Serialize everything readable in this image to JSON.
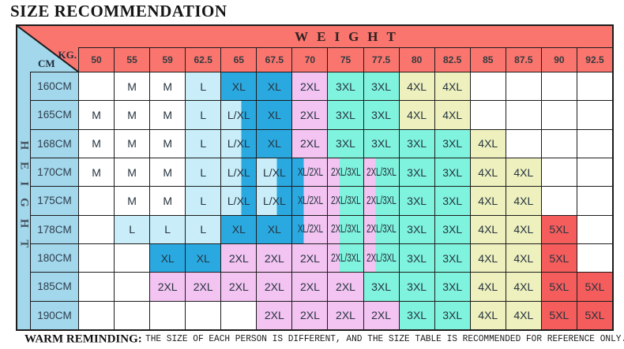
{
  "title": "SIZE RECOMMENDATION",
  "note": {
    "label": "WARM REMINDING:",
    "text": "THE SIZE OF EACH PERSON IS DIFFERENT, AND THE SIZE TABLE IS RECOMMENDED FOR REFERENCE ONLY."
  },
  "table": {
    "weight_label": "WEIGHT",
    "height_label": "HEIGHT",
    "corner": {
      "kg": "KG.",
      "cm": "CM"
    },
    "weights": [
      "50",
      "55",
      "59",
      "62.5",
      "65",
      "67.5",
      "70",
      "75",
      "77.5",
      "80",
      "82.5",
      "85",
      "87.5",
      "90",
      "92.5"
    ],
    "rows": [
      {
        "height": "160CM",
        "cells": [
          "",
          "M",
          "M",
          "L",
          "XL",
          "XL",
          "2XL",
          "3XL",
          "3XL",
          "4XL",
          "4XL",
          "",
          "",
          "",
          ""
        ]
      },
      {
        "height": "165CM",
        "cells": [
          "M",
          "M",
          "M",
          "L",
          "L/XL",
          "XL",
          "2XL",
          "3XL",
          "3XL",
          "4XL",
          "4XL",
          "",
          "",
          "",
          ""
        ]
      },
      {
        "height": "168CM",
        "cells": [
          "M",
          "M",
          "M",
          "L",
          "L/XL",
          "XL",
          "2XL",
          "3XL",
          "3XL",
          "3XL",
          "3XL",
          "4XL",
          "",
          "",
          ""
        ]
      },
      {
        "height": "170CM",
        "cells": [
          "M",
          "M",
          "M",
          "L",
          "L/XL",
          "L/XL",
          "XL/2XL",
          "2XL/3XL",
          "2XL/3XL",
          "3XL",
          "3XL",
          "4XL",
          "4XL",
          "",
          ""
        ]
      },
      {
        "height": "175CM",
        "cells": [
          "",
          "M",
          "M",
          "L",
          "L/XL",
          "L/XL",
          "XL/2XL",
          "2XL/3XL",
          "2XL/3XL",
          "3XL",
          "3XL",
          "4XL",
          "4XL",
          "",
          ""
        ]
      },
      {
        "height": "178CM",
        "cells": [
          "",
          "L",
          "L",
          "L",
          "XL",
          "XL",
          "XL/2XL",
          "2XL/3XL",
          "2XL/3XL",
          "3XL",
          "3XL",
          "4XL",
          "4XL",
          "5XL",
          ""
        ]
      },
      {
        "height": "180CM",
        "cells": [
          "",
          "",
          "XL",
          "XL",
          "2XL",
          "2XL",
          "2XL",
          "2XL/3XL",
          "2XL/3XL",
          "3XL",
          "3XL",
          "4XL",
          "4XL",
          "5XL",
          ""
        ]
      },
      {
        "height": "185CM",
        "cells": [
          "",
          "",
          "2XL",
          "2XL",
          "2XL",
          "2XL",
          "2XL",
          "2XL",
          "3XL",
          "3XL",
          "3XL",
          "4XL",
          "4XL",
          "5XL",
          "5XL"
        ]
      },
      {
        "height": "190CM",
        "cells": [
          "",
          "",
          "",
          "",
          "",
          "2XL",
          "2XL",
          "2XL",
          "2XL",
          "3XL",
          "3XL",
          "4XL",
          "4XL",
          "5XL",
          "5XL"
        ]
      }
    ]
  },
  "colors": {
    "header_red": "#f9756e",
    "corner_blue": "#a3d7eb",
    "grid": "#1c1c1c",
    "M": "#ffffff",
    "L": "#c9eef9",
    "XL": "#2aa9e1",
    "2XL": "#f3c3f1",
    "3XL": "#7ff3dd",
    "4XL": "#eef0be",
    "5XL": "#f55c5c",
    "empty": "#ffffff"
  },
  "chart_data": {
    "type": "table",
    "title": "SIZE RECOMMENDATION",
    "x_axis_label": "WEIGHT",
    "y_axis_label": "HEIGHT",
    "x_unit": "KG.",
    "y_unit": "CM",
    "columns_weight_kg": [
      50,
      55,
      59,
      62.5,
      65,
      67.5,
      70,
      75,
      77.5,
      80,
      82.5,
      85,
      87.5,
      90,
      92.5
    ],
    "rows_height_cm": [
      160,
      165,
      168,
      170,
      175,
      178,
      180,
      185,
      190
    ],
    "matrix": [
      [
        "",
        "M",
        "M",
        "L",
        "XL",
        "XL",
        "2XL",
        "3XL",
        "3XL",
        "4XL",
        "4XL",
        "",
        "",
        "",
        ""
      ],
      [
        "M",
        "M",
        "M",
        "L",
        "L/XL",
        "XL",
        "2XL",
        "3XL",
        "3XL",
        "4XL",
        "4XL",
        "",
        "",
        "",
        ""
      ],
      [
        "M",
        "M",
        "M",
        "L",
        "L/XL",
        "XL",
        "2XL",
        "3XL",
        "3XL",
        "3XL",
        "3XL",
        "4XL",
        "",
        "",
        ""
      ],
      [
        "M",
        "M",
        "M",
        "L",
        "L/XL",
        "L/XL",
        "XL/2XL",
        "2XL/3XL",
        "2XL/3XL",
        "3XL",
        "3XL",
        "4XL",
        "4XL",
        "",
        ""
      ],
      [
        "",
        "M",
        "M",
        "L",
        "L/XL",
        "L/XL",
        "XL/2XL",
        "2XL/3XL",
        "2XL/3XL",
        "3XL",
        "3XL",
        "4XL",
        "4XL",
        "",
        ""
      ],
      [
        "",
        "L",
        "L",
        "L",
        "XL",
        "XL",
        "XL/2XL",
        "2XL/3XL",
        "2XL/3XL",
        "3XL",
        "3XL",
        "4XL",
        "4XL",
        "5XL",
        ""
      ],
      [
        "",
        "",
        "XL",
        "XL",
        "2XL",
        "2XL",
        "2XL",
        "2XL/3XL",
        "2XL/3XL",
        "3XL",
        "3XL",
        "4XL",
        "4XL",
        "5XL",
        ""
      ],
      [
        "",
        "",
        "2XL",
        "2XL",
        "2XL",
        "2XL",
        "2XL",
        "2XL",
        "3XL",
        "3XL",
        "3XL",
        "4XL",
        "4XL",
        "5XL",
        "5XL"
      ],
      [
        "",
        "",
        "",
        "",
        "",
        "2XL",
        "2XL",
        "2XL",
        "2XL",
        "3XL",
        "3XL",
        "4XL",
        "4XL",
        "5XL",
        "5XL"
      ]
    ],
    "footnote": "WARM REMINDING: THE SIZE OF EACH PERSON IS DIFFERENT, AND THE SIZE TABLE IS RECOMMENDED FOR REFERENCE ONLY."
  }
}
